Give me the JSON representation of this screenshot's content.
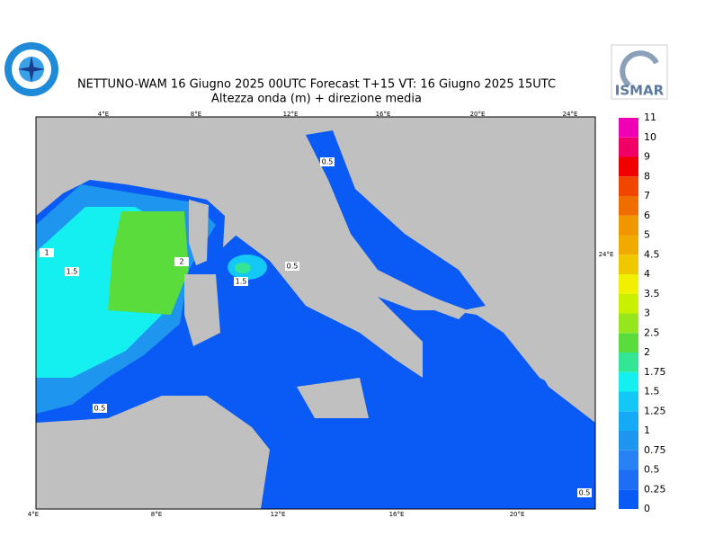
{
  "header": {
    "title": "NETTUNO-WAM  16   Giugno  2025 00UTC Forecast T+15 VT: 16   Giugno  2025 15UTC",
    "subtitle": "Altezza onda (m) + direzione media",
    "logo_text": "ISMAR"
  },
  "colorbar": {
    "levels": [
      0,
      0.25,
      0.5,
      0.75,
      1,
      1.25,
      1.5,
      1.75,
      2,
      2.5,
      3,
      3.5,
      4,
      4.5,
      5,
      6,
      7,
      8,
      9,
      10,
      11
    ],
    "colors": [
      "#0a5af5",
      "#1e6ef5",
      "#2882f5",
      "#1e96f0",
      "#14aaf5",
      "#14c8f5",
      "#14f0f0",
      "#32e696",
      "#5adc3c",
      "#96e61e",
      "#c8f000",
      "#f0f000",
      "#f0c800",
      "#f0aa00",
      "#f09600",
      "#f06e00",
      "#f04600",
      "#f00000",
      "#f00064",
      "#f000b4"
    ]
  },
  "lon_labels_top": [
    "4°E",
    "8°E",
    "12°E",
    "16°E",
    "20°E",
    "24°E"
  ],
  "lon_labels_bottom": [
    "4°E",
    "8°E",
    "12°E",
    "16°E",
    "20°E"
  ],
  "side_label": "24°E",
  "contour_labels": [
    "0.5",
    "1",
    "1.5",
    "2",
    "0.5",
    "1.5",
    "0.5",
    "0.5"
  ]
}
